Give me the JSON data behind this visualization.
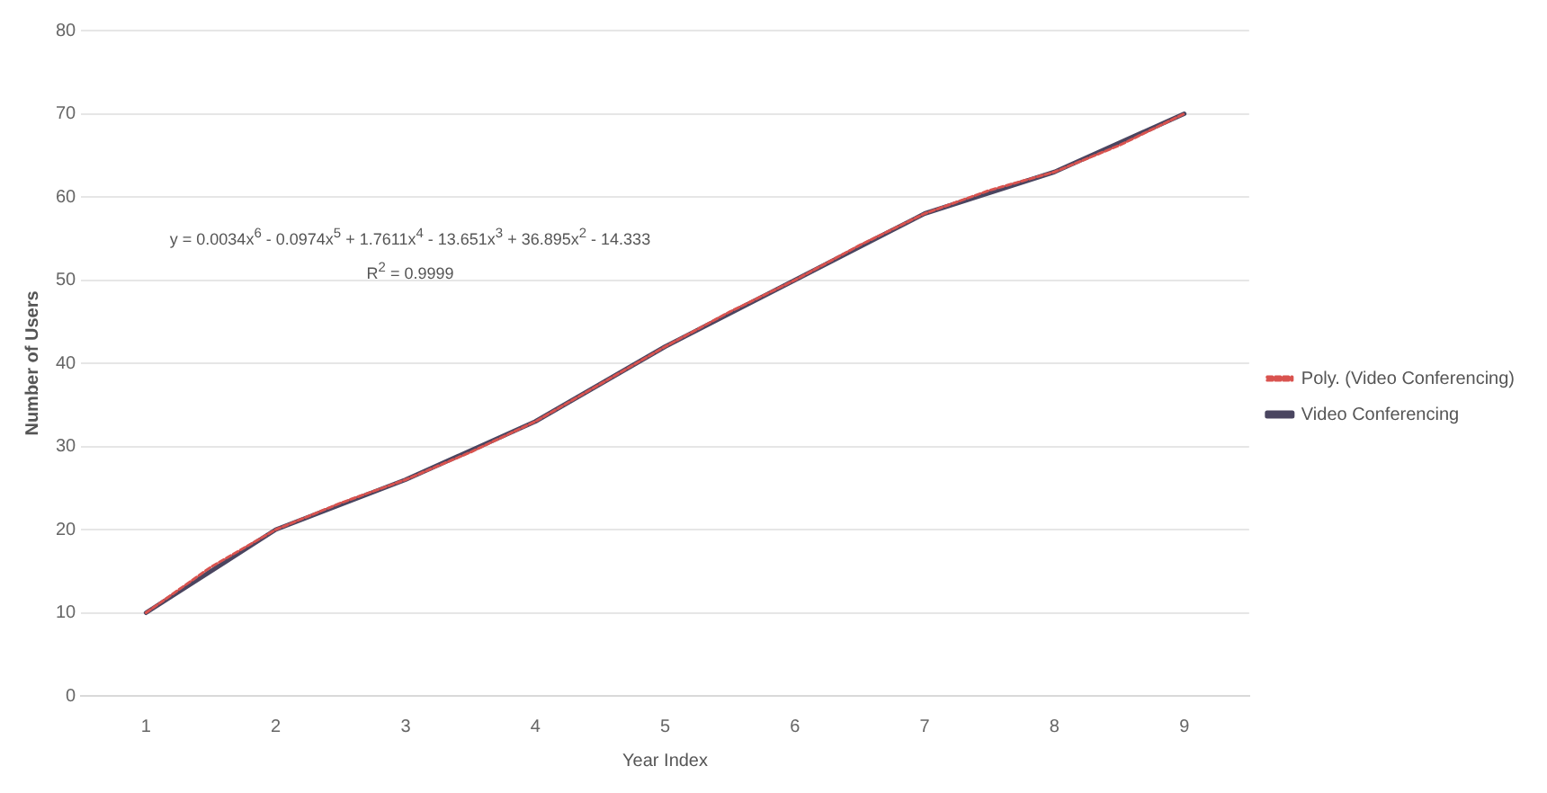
{
  "chart_data": {
    "type": "line",
    "xlabel": "Year Index",
    "ylabel": "Number of Users",
    "x": [
      1,
      2,
      3,
      4,
      5,
      6,
      7,
      8,
      9
    ],
    "series": [
      {
        "name": "Video Conferencing",
        "color": "#4a4560",
        "values": [
          10,
          20,
          26,
          33,
          42,
          50,
          58,
          63,
          70
        ]
      },
      {
        "name": "Poly. (Video Conferencing)",
        "color": "#d9534f",
        "line_style": "dotted",
        "x": [
          1,
          1.5,
          2,
          2.5,
          3,
          3.5,
          4,
          4.5,
          5,
          5.5,
          6,
          6.5,
          7,
          7.5,
          8,
          8.5,
          9
        ],
        "values": [
          10,
          15.5,
          20,
          23.2,
          26,
          29.3,
          33,
          37.5,
          42,
          46.2,
          50,
          54.2,
          58,
          60.8,
          63,
          66.2,
          70
        ]
      }
    ],
    "xlim": [
      0.5,
      9.5
    ],
    "xticks": [
      1,
      2,
      3,
      4,
      5,
      6,
      7,
      8,
      9
    ],
    "ylim": [
      0,
      80
    ],
    "yticks": [
      0,
      10,
      20,
      30,
      40,
      50,
      60,
      70,
      80
    ],
    "grid": "y",
    "legend": "right",
    "marker": "none",
    "line_style": "solid",
    "annotations": [
      "y = 0.0034x$^{6}$ - 0.0974x$^{5}$ + 1.7611x$^{4}$ - 13.651x$^{3}$ + 36.895x$^{2}$ - 14.333",
      "R$^{2}$ = 0.9999"
    ]
  }
}
